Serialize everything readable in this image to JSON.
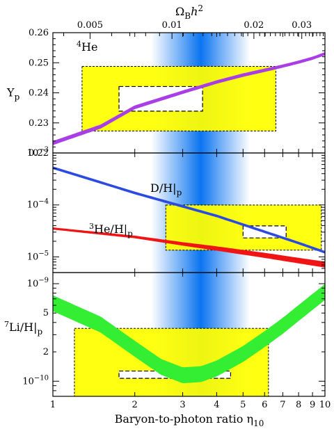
{
  "chart_data": {
    "type": "line",
    "x_axis": {
      "label_main": "Baryon-to-photon ratio η",
      "label_sub": "10",
      "scale": "log",
      "range": [
        1,
        10
      ],
      "ticks": [
        {
          "v": 1,
          "l": "1"
        },
        {
          "v": 2,
          "l": "2"
        },
        {
          "v": 3,
          "l": "3"
        },
        {
          "v": 4,
          "l": "4"
        },
        {
          "v": 5,
          "l": "5"
        },
        {
          "v": 6,
          "l": "6"
        },
        {
          "v": 7,
          "l": "7"
        },
        {
          "v": 8,
          "l": "8"
        },
        {
          "v": 9,
          "l": "9"
        },
        {
          "v": 10,
          "l": "10"
        }
      ]
    },
    "top_axis": {
      "label_main": "Ω",
      "label_sub": "B",
      "label_h": "h",
      "label_sup": "2",
      "scale": "log",
      "eta_per_unit": 274,
      "ticks": [
        {
          "v": 0.005,
          "l": "0.005"
        },
        {
          "v": 0.01,
          "l": "0.01"
        },
        {
          "v": 0.02,
          "l": "0.02"
        },
        {
          "v": 0.03,
          "l": "0.03"
        }
      ]
    },
    "cmb_band": {
      "eta_center": 3.8,
      "eta_half_width": 1.5,
      "color": "#0a74f0"
    },
    "panels": [
      {
        "id": "helium",
        "scale": "linear",
        "ylim": [
          0.22,
          0.26
        ],
        "ylabel_main": "Y",
        "ylabel_sub": "p",
        "ticks": [
          {
            "v": 0.22,
            "l": "0.22"
          },
          {
            "v": 0.23,
            "l": "0.23"
          },
          {
            "v": 0.24,
            "l": "0.24"
          },
          {
            "v": 0.25,
            "l": "0.25"
          },
          {
            "v": 0.26,
            "l": "0.26"
          }
        ],
        "annotation": {
          "sup": "4",
          "text": "He"
        },
        "obs_box": {
          "x": [
            1.28,
            6.6
          ],
          "y": [
            0.2273,
            0.2488
          ],
          "color": "#ffff00"
        },
        "inner_box": {
          "x": [
            1.75,
            3.55
          ],
          "y": [
            0.2339,
            0.2421
          ]
        },
        "curves": [
          {
            "name": "Y_p",
            "color": "#aa3ee6",
            "x": [
              1,
              1.5,
              2,
              3,
              4,
              5,
              6,
              7,
              8,
              9,
              10
            ],
            "y": [
              0.2233,
              0.2288,
              0.2352,
              0.2402,
              0.2436,
              0.2459,
              0.2475,
              0.2489,
              0.2502,
              0.2515,
              0.253
            ],
            "width": [
              0.0012,
              0.0012,
              0.0011,
              0.001,
              0.001,
              0.001,
              0.001,
              0.0009,
              0.0009,
              0.0009,
              0.0009
            ]
          }
        ]
      },
      {
        "id": "deuterium",
        "scale": "log",
        "ylim": [
          5e-06,
          0.001
        ],
        "ticks": [
          {
            "v": 0.001,
            "base": "10",
            "exp": "−3"
          },
          {
            "v": 0.0001,
            "base": "10",
            "exp": "−4"
          },
          {
            "v": 1e-05,
            "base": "10",
            "exp": "−5"
          }
        ],
        "obs_box": {
          "x": [
            2.6,
            9.7
          ],
          "y": [
            1.35e-05,
            9.95e-05
          ],
          "color": "#ffff00"
        },
        "inner_box": {
          "x": [
            5.0,
            7.2
          ],
          "y": [
            2.32e-05,
            3.95e-05
          ]
        },
        "curves": [
          {
            "name": "D/H|p",
            "label_text": "D/H|",
            "label_sub": "p",
            "color": "#2b4be0",
            "x": [
              1,
              2,
              4,
              6,
              8,
              10
            ],
            "y": [
              0.00052,
              0.00017,
              6.15e-05,
              3.05e-05,
              1.85e-05,
              1.23e-05
            ],
            "width": [
              1.05,
              1.05,
              1.05,
              1.05,
              1.05,
              1.05
            ]
          },
          {
            "name": "3He/H|p",
            "label_sup": "3",
            "label_text": "He/H|",
            "label_sub": "p",
            "color": "#f01414",
            "x": [
              1,
              2,
              3,
              4,
              6,
              8,
              10
            ],
            "y": [
              3.52e-05,
              2.42e-05,
              1.78e-05,
              1.45e-05,
              1.07e-05,
              8.5e-06,
              7.1e-06
            ],
            "width": [
              1.04,
              1.05,
              1.07,
              1.09,
              1.11,
              1.12,
              1.13
            ]
          }
        ]
      },
      {
        "id": "lithium",
        "scale": "log",
        "ylim": [
          7e-11,
          1.3e-09
        ],
        "ylabel_sup": "7",
        "ylabel_main": "Li/H|",
        "ylabel_sub": "p",
        "ticks": [
          {
            "v": 1e-09,
            "base": "10",
            "exp": "−9"
          },
          {
            "v": 5e-10,
            "l": "5"
          },
          {
            "v": 2e-10,
            "l": "2"
          },
          {
            "v": 1e-10,
            "base": "10",
            "exp": "−10"
          }
        ],
        "obs_box": {
          "x": [
            1.2,
            6.2
          ],
          "y": [
            5e-11,
            3.48e-10
          ],
          "color": "#ffff00"
        },
        "inner_box": {
          "x": [
            1.75,
            4.5
          ],
          "y": [
            1.07e-10,
            1.27e-10
          ]
        },
        "curves": [
          {
            "name": "7Li/H|p",
            "color": "#33ee33",
            "x": [
              1,
              1.5,
              2,
              2.5,
              3,
              3.5,
              4,
              5,
              6,
              7,
              8,
              9,
              10
            ],
            "y": [
              6.3e-10,
              3.8e-10,
              2.15e-10,
              1.4e-10,
              1.15e-10,
              1.18e-10,
              1.35e-10,
              1.9e-10,
              2.7e-10,
              3.7e-10,
              5e-10,
              6.5e-10,
              8.2e-10
            ],
            "width": [
              1.2,
              1.2,
              1.2,
              1.2,
              1.2,
              1.2,
              1.2,
              1.2,
              1.2,
              1.2,
              1.2,
              1.2,
              1.2
            ]
          }
        ]
      }
    ]
  }
}
